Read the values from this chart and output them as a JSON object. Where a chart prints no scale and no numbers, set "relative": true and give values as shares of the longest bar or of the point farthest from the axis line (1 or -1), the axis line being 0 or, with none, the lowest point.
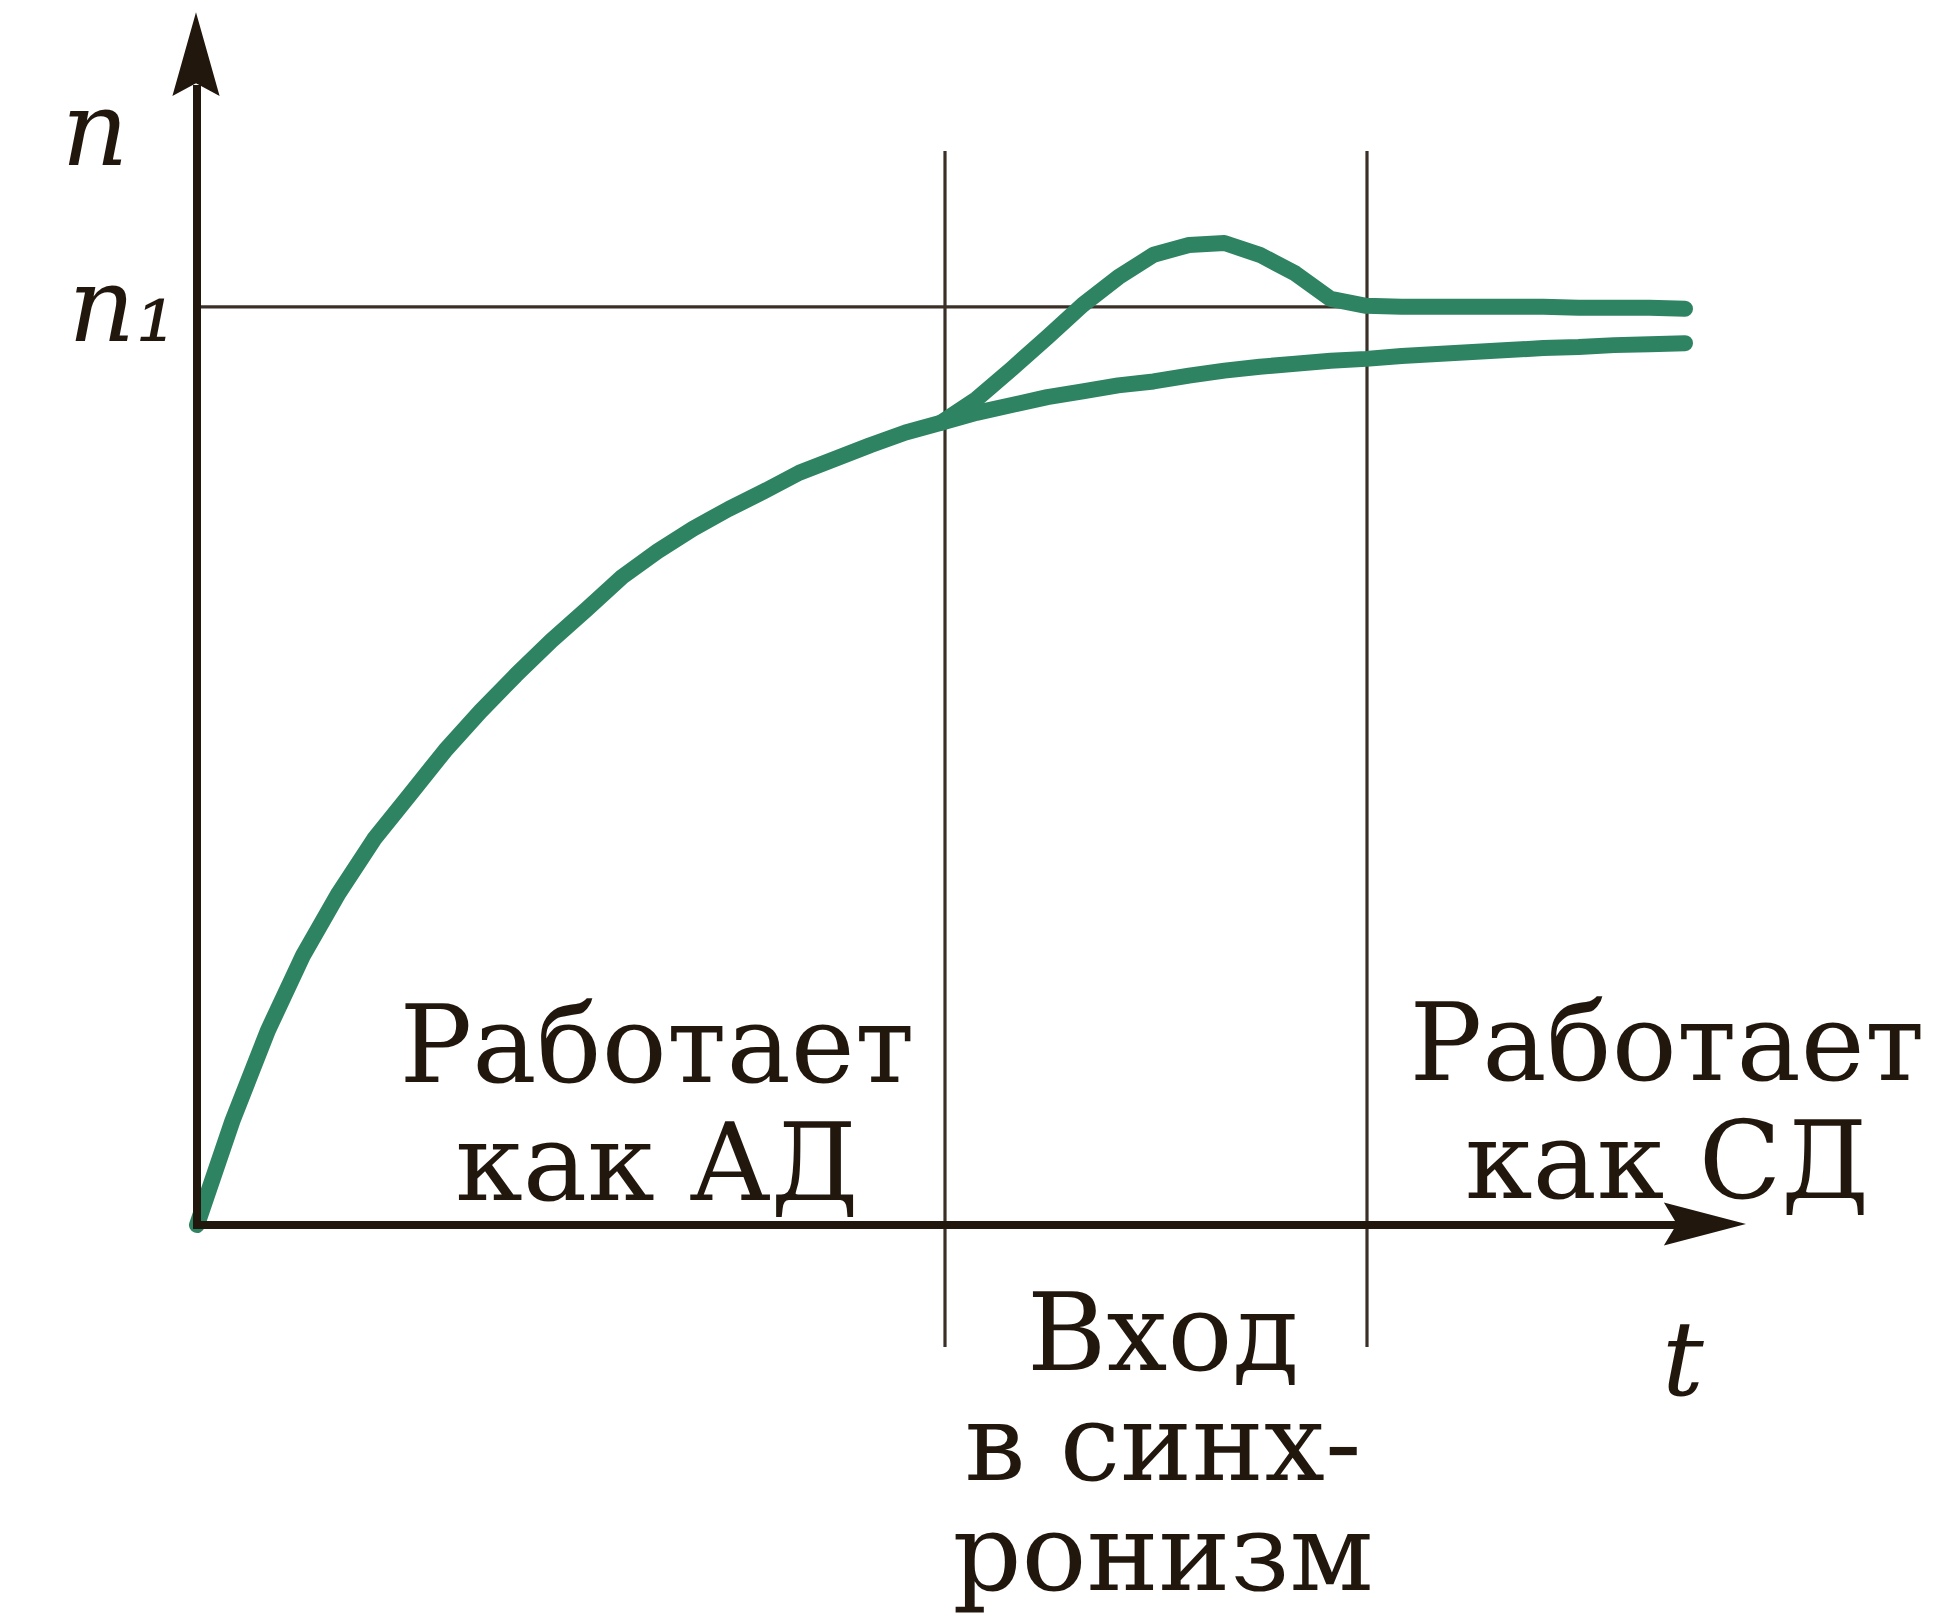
{
  "chart_data": {
    "type": "line",
    "relative": true,
    "xlabel": "t",
    "ylabel": "n",
    "categories": [
      null,
      null,
      null,
      null,
      null,
      null,
      null,
      null,
      null,
      null,
      null,
      null,
      null,
      null,
      null,
      null,
      null,
      null,
      null,
      null,
      null,
      null,
      null,
      null,
      null,
      null,
      null,
      null,
      null,
      null,
      null,
      null,
      null,
      null,
      null,
      null,
      null,
      null,
      null,
      null,
      null,
      null,
      null
    ],
    "series": [
      {
        "color": "#2e8462",
        "values": [
          0,
          0.106,
          0.198,
          0.275,
          0.338,
          0.393,
          0.438,
          0.483,
          0.523,
          0.56,
          0.595,
          0.627,
          0.66,
          0.686,
          0.709,
          0.729,
          0.747,
          0.766,
          0.78,
          0.794,
          0.807,
          0.817,
          0.827,
          0.835,
          0.843,
          0.849,
          0.855,
          0.859,
          0.865,
          0.87,
          0.874,
          0.877,
          0.88,
          0.882,
          0.885,
          0.887,
          0.889,
          0.891,
          0.893,
          0.894,
          0.896,
          0.897,
          0.898
        ]
      },
      {
        "color": "#2e8462",
        "values": [
          null,
          null,
          null,
          null,
          null,
          null,
          null,
          null,
          null,
          null,
          null,
          null,
          null,
          null,
          null,
          null,
          null,
          null,
          null,
          null,
          null,
          0.817,
          0.841,
          0.872,
          0.904,
          0.937,
          0.965,
          0.988,
          0.998,
          1,
          0.988,
          0.969,
          0.943,
          0.936,
          0.935,
          0.935,
          0.935,
          0.935,
          0.935,
          0.934,
          0.934,
          0.934,
          0.933
        ]
      }
    ],
    "ref_lines": [
      {
        "axis": "y",
        "value": 0.935,
        "label": "n₁"
      }
    ],
    "annotations": [
      "Работает\nкак АД",
      "Вход\nв синх-\nронизм",
      "Работает\nкак СД"
    ]
  }
}
